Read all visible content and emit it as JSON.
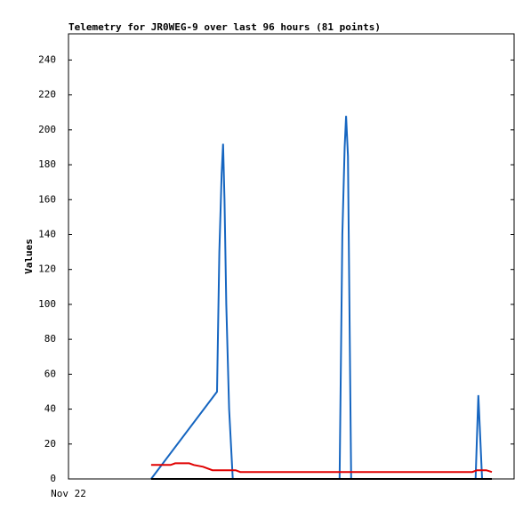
{
  "chart_data": {
    "type": "line",
    "title": "Telemetry for JR0WEG-9 over last 96 hours (81 points)",
    "y_label": "Values",
    "xlim": [
      0,
      96
    ],
    "xticks": [
      {
        "value": 0,
        "label": "Nov 22"
      }
    ],
    "ylim": [
      0,
      255
    ],
    "yticks": [
      0,
      20,
      40,
      60,
      80,
      100,
      120,
      140,
      160,
      180,
      200,
      220,
      240
    ],
    "series": [
      {
        "color": "#1565c0",
        "x": [
          17.8,
          32,
          32.5,
          33,
          33.3,
          33.6,
          34,
          34.6,
          35.4,
          58.4,
          59,
          59.5,
          59.8,
          60.2,
          60.9,
          87.7,
          88.3,
          88.6,
          89.1,
          91.2
        ],
        "values": [
          0,
          50,
          130,
          175,
          192,
          160,
          100,
          40,
          0,
          0,
          140,
          190,
          208,
          185,
          0,
          0,
          48,
          30,
          0,
          0
        ]
      },
      {
        "color": "#e00000",
        "x": [
          17.8,
          22,
          23,
          26,
          27,
          29,
          31,
          36,
          37,
          87,
          88,
          90,
          91.2
        ],
        "values": [
          8,
          8,
          9,
          9,
          8,
          7,
          5,
          5,
          4,
          4,
          5,
          5,
          4
        ]
      },
      {
        "color": "#000000",
        "x": [
          17.8,
          91.2
        ],
        "values": [
          0,
          0
        ]
      }
    ]
  }
}
